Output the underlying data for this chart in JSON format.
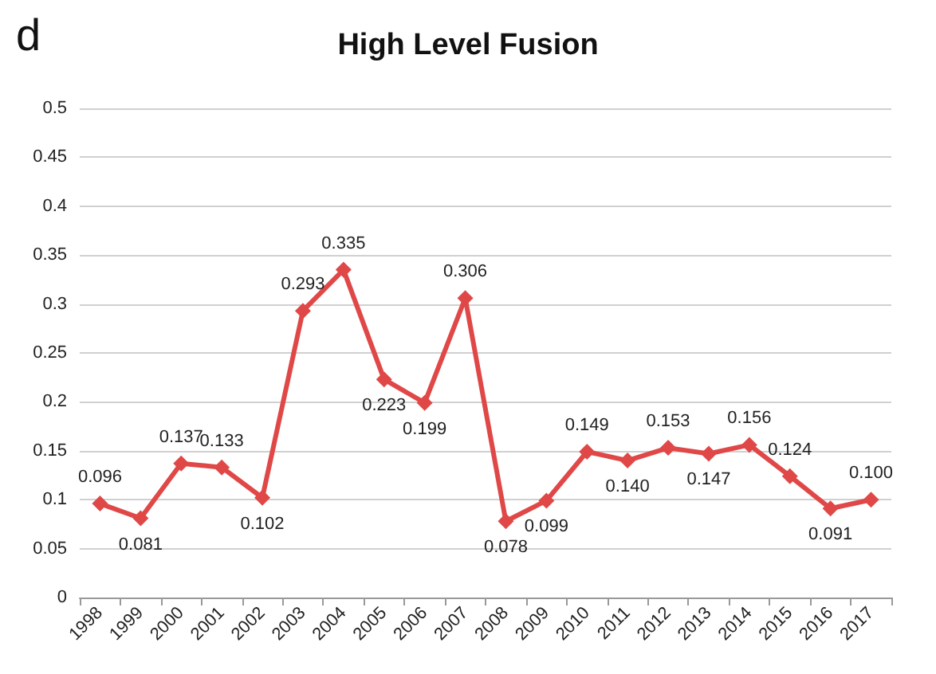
{
  "chart_data": {
    "type": "line",
    "title": "High Level Fusion",
    "annotations": [
      "d"
    ],
    "categories": [
      "1998",
      "1999",
      "2000",
      "2001",
      "2002",
      "2003",
      "2004",
      "2005",
      "2006",
      "2007",
      "2008",
      "2009",
      "2010",
      "2011",
      "2012",
      "2013",
      "2014",
      "2015",
      "2016",
      "2017"
    ],
    "series": [
      {
        "color": "#e04848",
        "values": [
          0.096,
          0.081,
          0.137,
          0.133,
          0.102,
          0.293,
          0.335,
          0.223,
          0.199,
          0.306,
          0.078,
          0.099,
          0.149,
          0.14,
          0.153,
          0.147,
          0.156,
          0.124,
          0.091,
          0.1
        ],
        "value_labels": [
          "0.096",
          "0.081",
          "0.137",
          "0.133",
          "0.102",
          "0.293",
          "0.335",
          "0.223",
          "0.199",
          "0.306",
          "0.078",
          "0.099",
          "0.149",
          "0.140",
          "0.153",
          "0.147",
          "0.156",
          "0.124",
          "0.091",
          "0.100"
        ]
      }
    ],
    "ylim": [
      0,
      0.5
    ],
    "yticks": [
      0,
      0.05,
      0.1,
      0.15,
      0.2,
      0.25,
      0.3,
      0.35,
      0.4,
      0.45,
      0.5
    ],
    "grid": "y",
    "marker": "diamond",
    "line_style": "solid"
  }
}
